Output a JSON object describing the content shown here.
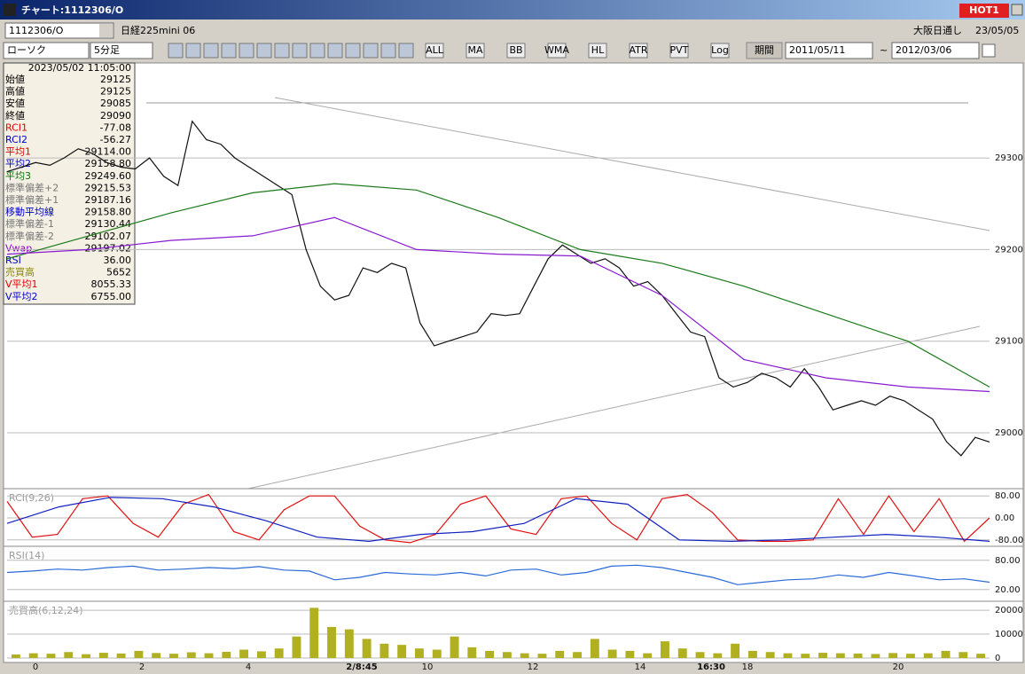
{
  "window": {
    "title": "チャート:1112306/O",
    "badge": "HOT1"
  },
  "symbol_bar": {
    "code": "1112306/O",
    "name": "日経225mini 06",
    "market": "大阪日通し",
    "date": "23/05/05"
  },
  "toolbar": {
    "chart_type": "ローソク",
    "interval": "5分足",
    "buttons": [
      "ALL",
      "MA",
      "BB",
      "WMA",
      "HL",
      "ATR",
      "PVT",
      "Log"
    ],
    "period_label": "期間",
    "from": "2011/05/11",
    "sep": "~",
    "to": "2012/03/06"
  },
  "info_panel": {
    "datetime": "2023/05/02 11:05:00",
    "rows": [
      [
        "始値",
        "29125"
      ],
      [
        "高値",
        "29125"
      ],
      [
        "安値",
        "29085"
      ],
      [
        "終値",
        "29090"
      ],
      [
        "RCI1",
        "-77.08"
      ],
      [
        "RCI2",
        "-56.27"
      ],
      [
        "平均1",
        "29114.00"
      ],
      [
        "平均2",
        "29158.80"
      ],
      [
        "平均3",
        "29249.60"
      ],
      [
        "標準偏差+2",
        "29215.53"
      ],
      [
        "標準偏差+1",
        "29187.16"
      ],
      [
        "移動平均線",
        "29158.80"
      ],
      [
        "標準偏差-1",
        "29130.44"
      ],
      [
        "標準偏差-2",
        "29102.07"
      ],
      [
        "Vwap",
        "29197.02"
      ],
      [
        "RSI",
        "36.00"
      ],
      [
        "売買高",
        "5652"
      ],
      [
        "V平均1",
        "8055.33"
      ],
      [
        "V平均2",
        "6755.00"
      ]
    ]
  },
  "time_axis": {
    "labels": [
      "0",
      "2",
      "4",
      "2/8:45",
      "10",
      "12",
      "14",
      "16:30",
      "18",
      "20"
    ]
  },
  "chart_data": [
    {
      "type": "line",
      "ylim": [
        28940,
        29395
      ],
      "yticks": [
        29000,
        29100,
        29200,
        29300
      ],
      "grid": true,
      "series": [
        {
          "name": "終値",
          "color": "#111111",
          "values": [
            29285,
            29290,
            29295,
            29292,
            29300,
            29310,
            29305,
            29295,
            29290,
            29288,
            29300,
            29280,
            29270,
            29340,
            29320,
            29315,
            29300,
            29290,
            29280,
            29270,
            29260,
            29200,
            29160,
            29145,
            29150,
            29180,
            29175,
            29185,
            29180,
            29120,
            29095,
            29100,
            29105,
            29110,
            29130,
            29128,
            29130,
            29160,
            29190,
            29205,
            29195,
            29185,
            29190,
            29180,
            29160,
            29165,
            29150,
            29130,
            29110,
            29105,
            29060,
            29050,
            29055,
            29065,
            29060,
            29050,
            29070,
            29050,
            29025,
            29030,
            29035,
            29030,
            29040,
            29035,
            29025,
            29015,
            28990,
            28975,
            28995,
            28990
          ]
        },
        {
          "name": "平均3",
          "color": "#1a7a1a",
          "values": [
            29190,
            29215,
            29240,
            29262,
            29272,
            29265,
            29235,
            29200,
            29185,
            29160,
            29130,
            29100,
            29050
          ]
        },
        {
          "name": "Vwap",
          "color": "#8a1ad0",
          "values": [
            29195,
            29200,
            29210,
            29215,
            29235,
            29200,
            29195,
            29193,
            29150,
            29080,
            29060,
            29050,
            29045
          ]
        }
      ]
    },
    {
      "type": "line",
      "title": "RCI(9,26)",
      "ylim": [
        -100,
        100
      ],
      "yticks": [
        {
          "value": 80,
          "label": "80.00"
        },
        {
          "value": 0,
          "label": "0.00"
        },
        {
          "value": -80,
          "label": "-80.00"
        }
      ],
      "grid": true,
      "series": [
        {
          "name": "RCI1",
          "color": "#e01010",
          "values": [
            60,
            -70,
            -60,
            70,
            80,
            -20,
            -70,
            50,
            85,
            -50,
            -80,
            30,
            80,
            80,
            -30,
            -80,
            -90,
            -60,
            50,
            80,
            -40,
            -60,
            70,
            80,
            -20,
            -80,
            70,
            85,
            20,
            -80,
            -85,
            -85,
            -80,
            70,
            -60,
            80,
            -50,
            70,
            -85,
            0
          ]
        },
        {
          "name": "RCI2",
          "color": "#1020c0",
          "values": [
            -20,
            40,
            75,
            70,
            40,
            -10,
            -70,
            -85,
            -60,
            -50,
            -20,
            70,
            50,
            -80,
            -85,
            -80,
            -70,
            -60,
            -70,
            -85
          ]
        }
      ]
    },
    {
      "type": "line",
      "title": "RSI(14)",
      "ylim": [
        -4,
        105
      ],
      "yticks": [
        {
          "value": 80,
          "label": "80.00"
        },
        {
          "value": 20,
          "label": "20.00"
        }
      ],
      "grid": true,
      "series": [
        {
          "name": "RSI",
          "color": "#2a6ad8",
          "values": [
            55,
            58,
            62,
            60,
            65,
            68,
            60,
            62,
            65,
            63,
            67,
            60,
            58,
            40,
            45,
            55,
            52,
            50,
            55,
            48,
            60,
            62,
            50,
            55,
            68,
            70,
            65,
            55,
            45,
            30,
            35,
            40,
            42,
            50,
            45,
            55,
            48,
            40,
            42,
            35
          ]
        }
      ]
    },
    {
      "type": "bar",
      "title": "売買高(6,12,24)",
      "ylim": [
        0,
        23000
      ],
      "yticks": [
        20000,
        10000,
        0
      ],
      "grid": true,
      "color": "#b0b020",
      "values": [
        1500,
        2000,
        1800,
        2500,
        1600,
        2200,
        1900,
        3000,
        2100,
        1800,
        2400,
        2000,
        2600,
        3500,
        2800,
        4000,
        9000,
        21000,
        13000,
        12000,
        8000,
        6000,
        5500,
        4000,
        3500,
        9000,
        4500,
        3000,
        2500,
        2000,
        1800,
        3000,
        2500,
        8000,
        3500,
        3000,
        2000,
        7000,
        4000,
        2500,
        2000,
        6000,
        3000,
        2500,
        2000,
        1800,
        2200,
        2000,
        1900,
        1700,
        2100,
        1800,
        2000,
        3000,
        2500,
        1800
      ]
    }
  ]
}
